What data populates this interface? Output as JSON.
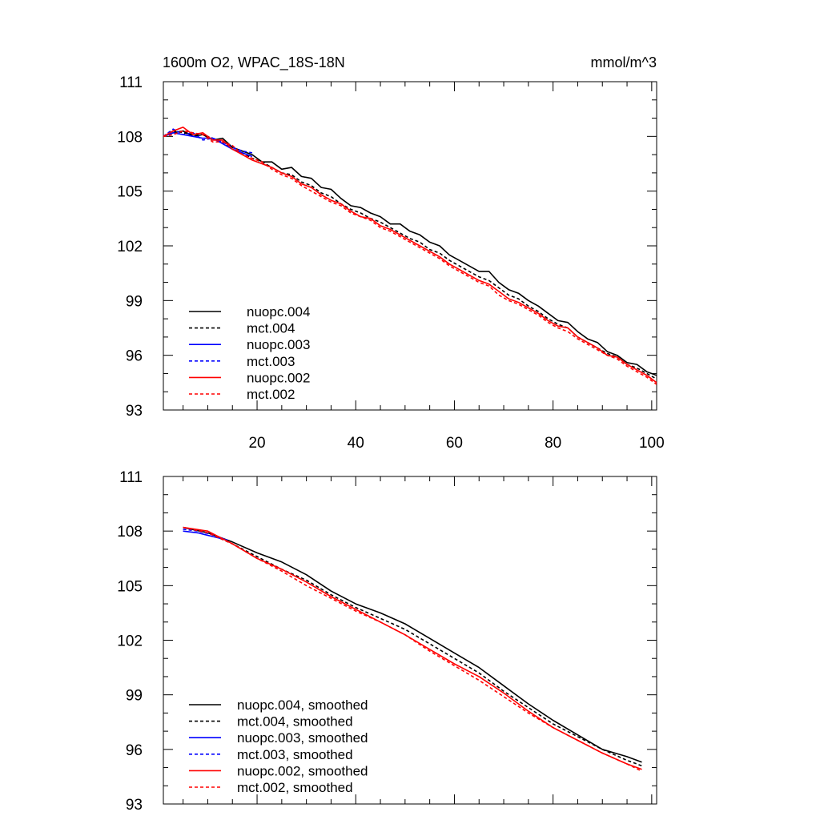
{
  "header": {
    "title": "1600m O2, WPAC_18S-18N",
    "units": "mmol/m^3"
  },
  "colors": {
    "black": "#000000",
    "blue": "#0000ff",
    "red": "#ff0000"
  },
  "chart_data": [
    {
      "type": "line",
      "title": "1600m O2, WPAC_18S-18N",
      "units": "mmol/m^3",
      "xlim": [
        1,
        101
      ],
      "ylim": [
        93,
        111
      ],
      "x_tick_labels": [
        "20",
        "40",
        "60",
        "80",
        "100"
      ],
      "y_tick_labels": [
        "93",
        "96",
        "99",
        "102",
        "105",
        "108",
        "111"
      ],
      "legend_position": "bottom-left",
      "series": [
        {
          "name": "nuopc.004",
          "color": "#000000",
          "dash": "solid",
          "x": [
            1,
            3,
            5,
            7,
            9,
            11,
            13,
            15,
            17,
            19,
            21,
            23,
            25,
            27,
            29,
            31,
            33,
            35,
            37,
            39,
            41,
            43,
            45,
            47,
            49,
            51,
            53,
            55,
            57,
            59,
            61,
            63,
            65,
            67,
            69,
            71,
            73,
            75,
            77,
            79,
            81,
            83,
            85,
            87,
            89,
            91,
            93,
            95,
            97,
            99,
            101
          ],
          "y": [
            108.0,
            108.2,
            108.3,
            108.0,
            108.1,
            107.8,
            107.9,
            107.4,
            107.2,
            107.0,
            106.6,
            106.6,
            106.2,
            106.3,
            105.8,
            105.7,
            105.2,
            105.1,
            104.6,
            104.2,
            104.1,
            103.8,
            103.6,
            103.2,
            103.2,
            102.8,
            102.6,
            102.2,
            102.0,
            101.5,
            101.2,
            100.9,
            100.6,
            100.6,
            100.0,
            99.6,
            99.4,
            99.0,
            98.7,
            98.3,
            97.9,
            97.8,
            97.3,
            96.9,
            96.7,
            96.2,
            96.0,
            95.6,
            95.5,
            95.1,
            94.9
          ]
        },
        {
          "name": "mct.004",
          "color": "#000000",
          "dash": "dashed",
          "x": [
            1,
            3,
            5,
            7,
            9,
            11,
            13,
            15,
            17,
            19,
            21,
            23,
            25,
            27,
            29,
            31,
            33,
            35,
            37,
            39,
            41,
            43,
            45,
            47,
            49,
            51,
            53,
            55,
            57,
            59,
            61,
            63,
            65,
            67,
            69,
            71,
            73,
            75,
            77,
            79,
            81,
            83,
            85,
            87,
            89,
            91,
            93,
            95,
            97,
            99,
            101
          ],
          "y": [
            108.0,
            108.3,
            108.2,
            108.1,
            108.1,
            107.9,
            107.7,
            107.3,
            107.1,
            106.8,
            106.6,
            106.3,
            106.0,
            105.9,
            105.5,
            105.3,
            104.9,
            104.7,
            104.3,
            104.0,
            103.8,
            103.5,
            103.3,
            103.0,
            102.7,
            102.4,
            102.2,
            101.8,
            101.6,
            101.2,
            100.9,
            100.6,
            100.3,
            100.1,
            99.7,
            99.3,
            99.1,
            98.7,
            98.4,
            98.0,
            97.7,
            97.5,
            97.0,
            96.7,
            96.4,
            96.1,
            95.9,
            95.5,
            95.3,
            95.0,
            94.7
          ]
        },
        {
          "name": "nuopc.003",
          "color": "#0000ff",
          "dash": "solid",
          "x": [
            1,
            3,
            5,
            7,
            9,
            11,
            13,
            15,
            17,
            19
          ],
          "y": [
            108.0,
            108.2,
            108.1,
            108.0,
            107.9,
            107.9,
            107.6,
            107.3,
            107.1,
            106.9
          ]
        },
        {
          "name": "mct.003",
          "color": "#0000ff",
          "dash": "dashed",
          "x": [
            1,
            3,
            5,
            7,
            9,
            11,
            13,
            15,
            17,
            19
          ],
          "y": [
            108.0,
            108.4,
            108.1,
            108.2,
            107.8,
            107.9,
            107.7,
            107.4,
            107.2,
            107.1
          ]
        },
        {
          "name": "nuopc.002",
          "color": "#ff0000",
          "dash": "solid",
          "x": [
            1,
            3,
            5,
            7,
            9,
            11,
            13,
            15,
            17,
            19,
            21,
            23,
            25,
            27,
            29,
            31,
            33,
            35,
            37,
            39,
            41,
            43,
            45,
            47,
            49,
            51,
            53,
            55,
            57,
            59,
            61,
            63,
            65,
            67,
            69,
            71,
            73,
            75,
            77,
            79,
            81,
            83,
            85,
            87,
            89,
            91,
            93,
            95,
            97,
            99,
            101
          ],
          "y": [
            108.0,
            108.3,
            108.5,
            108.1,
            108.2,
            107.8,
            107.8,
            107.3,
            107.0,
            106.7,
            106.5,
            106.3,
            106.0,
            105.8,
            105.4,
            105.2,
            104.8,
            104.5,
            104.3,
            103.9,
            103.6,
            103.5,
            103.1,
            102.9,
            102.6,
            102.3,
            102.0,
            101.7,
            101.4,
            101.0,
            100.7,
            100.4,
            100.1,
            99.9,
            99.5,
            99.1,
            98.9,
            98.6,
            98.3,
            97.9,
            97.6,
            97.5,
            97.0,
            96.7,
            96.4,
            96.0,
            95.9,
            95.5,
            95.2,
            94.9,
            94.5
          ]
        },
        {
          "name": "mct.002",
          "color": "#ff0000",
          "dash": "dashed",
          "x": [
            1,
            3,
            5,
            7,
            9,
            11,
            13,
            15,
            17,
            19,
            21,
            23,
            25,
            27,
            29,
            31,
            33,
            35,
            37,
            39,
            41,
            43,
            45,
            47,
            49,
            51,
            53,
            55,
            57,
            59,
            61,
            63,
            65,
            67,
            69,
            71,
            73,
            75,
            77,
            79,
            81,
            83,
            85,
            87,
            89,
            91,
            93,
            95,
            97,
            99,
            101
          ],
          "y": [
            108.0,
            108.1,
            108.3,
            108.2,
            108.1,
            107.7,
            107.7,
            107.5,
            107.0,
            106.8,
            106.6,
            106.2,
            105.9,
            105.7,
            105.3,
            105.0,
            104.7,
            104.4,
            104.2,
            103.8,
            103.6,
            103.4,
            103.0,
            102.8,
            102.5,
            102.2,
            101.9,
            101.6,
            101.3,
            100.9,
            100.6,
            100.3,
            100.0,
            99.8,
            99.3,
            99.0,
            98.8,
            98.5,
            98.2,
            97.8,
            97.5,
            97.3,
            96.9,
            96.6,
            96.3,
            96.0,
            95.8,
            95.4,
            95.1,
            94.8,
            94.4
          ]
        }
      ]
    },
    {
      "type": "line",
      "xlim": [
        1,
        101
      ],
      "ylim": [
        93,
        111
      ],
      "y_tick_labels": [
        "93",
        "96",
        "99",
        "102",
        "105",
        "108",
        "111"
      ],
      "legend_position": "bottom-left",
      "series": [
        {
          "name": "nuopc.004, smoothed",
          "color": "#000000",
          "dash": "solid",
          "x": [
            5,
            10,
            15,
            20,
            25,
            30,
            35,
            40,
            45,
            50,
            55,
            60,
            65,
            70,
            75,
            80,
            85,
            90,
            95,
            98
          ],
          "y": [
            108.2,
            107.9,
            107.4,
            106.8,
            106.3,
            105.6,
            104.7,
            104.0,
            103.5,
            102.9,
            102.1,
            101.3,
            100.5,
            99.5,
            98.5,
            97.6,
            96.8,
            96.0,
            95.6,
            95.3
          ]
        },
        {
          "name": "mct.004, smoothed",
          "color": "#000000",
          "dash": "dashed",
          "x": [
            5,
            10,
            15,
            20,
            25,
            30,
            35,
            40,
            45,
            50,
            55,
            60,
            65,
            70,
            75,
            80,
            85,
            90,
            95,
            98
          ],
          "y": [
            108.2,
            107.9,
            107.3,
            106.6,
            105.9,
            105.3,
            104.5,
            103.8,
            103.2,
            102.6,
            101.8,
            101.0,
            100.2,
            99.2,
            98.3,
            97.4,
            96.7,
            96.0,
            95.4,
            95.1
          ]
        },
        {
          "name": "nuopc.003, smoothed",
          "color": "#0000ff",
          "dash": "solid",
          "x": [
            5,
            8,
            11,
            14
          ],
          "y": [
            108.0,
            107.9,
            107.7,
            107.5
          ]
        },
        {
          "name": "mct.003, smoothed",
          "color": "#0000ff",
          "dash": "dashed",
          "x": [
            5,
            8,
            11,
            14
          ],
          "y": [
            108.1,
            108.0,
            107.8,
            107.5
          ]
        },
        {
          "name": "nuopc.002, smoothed",
          "color": "#ff0000",
          "dash": "solid",
          "x": [
            5,
            10,
            15,
            20,
            25,
            30,
            35,
            40,
            45,
            50,
            55,
            60,
            65,
            70,
            75,
            80,
            85,
            90,
            95,
            98
          ],
          "y": [
            108.2,
            108.0,
            107.3,
            106.5,
            105.9,
            105.2,
            104.4,
            103.7,
            103.0,
            102.3,
            101.5,
            100.7,
            100.0,
            99.1,
            98.1,
            97.2,
            96.5,
            95.8,
            95.2,
            94.9
          ]
        },
        {
          "name": "mct.002, smoothed",
          "color": "#ff0000",
          "dash": "dashed",
          "x": [
            5,
            10,
            15,
            20,
            25,
            30,
            35,
            40,
            45,
            50,
            55,
            60,
            65,
            70,
            75,
            80,
            85,
            90,
            95,
            98
          ],
          "y": [
            108.2,
            107.9,
            107.3,
            106.5,
            105.8,
            105.0,
            104.3,
            103.6,
            103.0,
            102.3,
            101.4,
            100.6,
            99.8,
            98.9,
            98.0,
            97.2,
            96.5,
            95.8,
            95.2,
            94.8
          ]
        }
      ]
    }
  ]
}
